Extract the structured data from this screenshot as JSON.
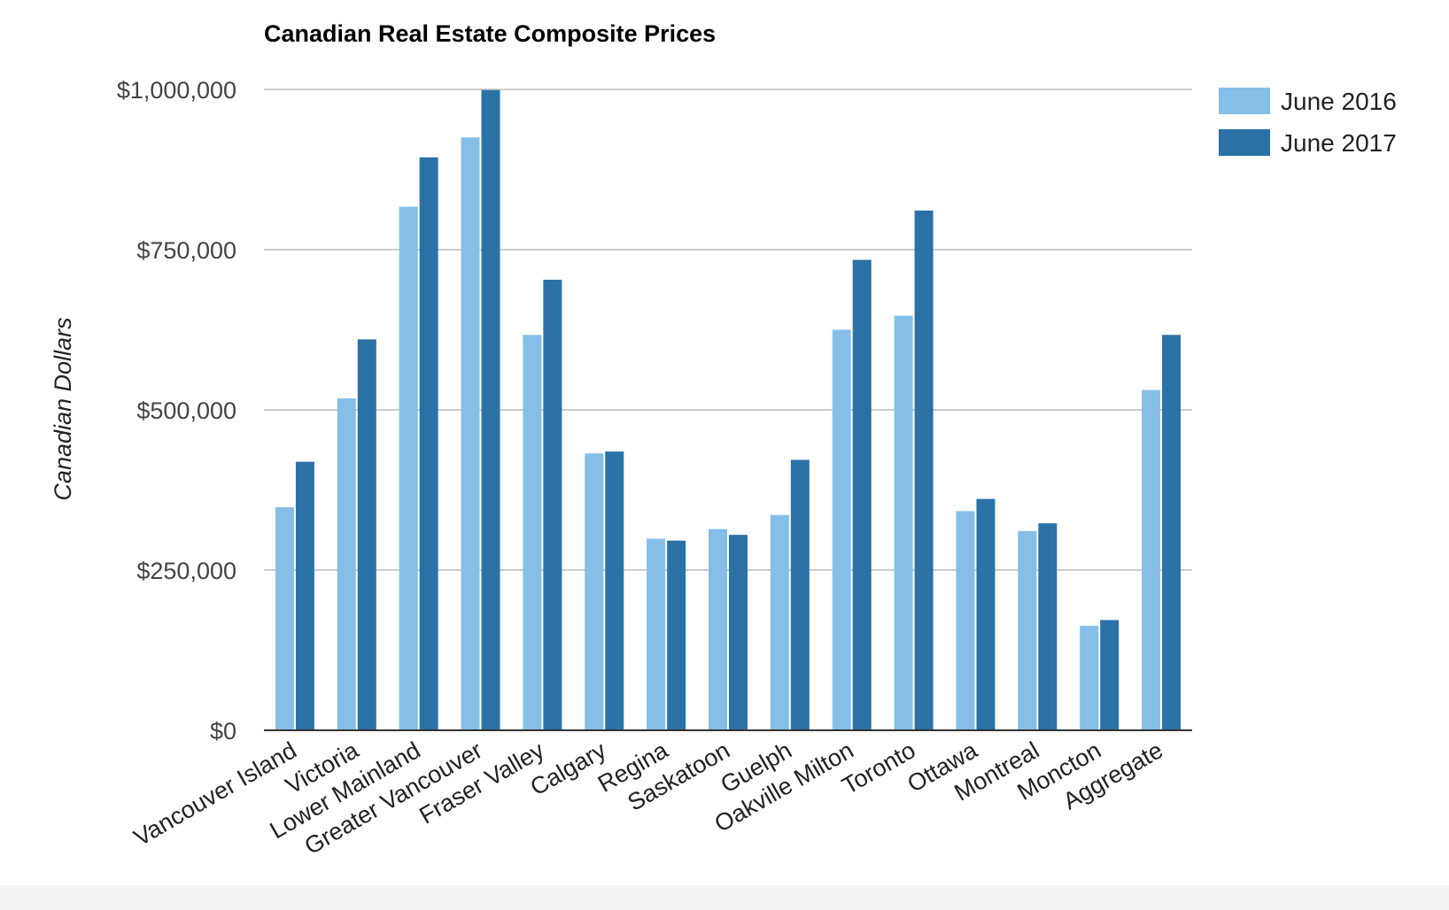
{
  "chart_data": {
    "type": "bar",
    "title": "Canadian Real Estate Composite Prices",
    "xlabel": "",
    "ylabel": "Canadian Dollars",
    "ylim": [
      0,
      1000000
    ],
    "yticks": [
      0,
      250000,
      500000,
      750000,
      1000000
    ],
    "ytick_labels": [
      "$0",
      "$250,000",
      "$500,000",
      "$750,000",
      "$1,000,000"
    ],
    "grid": true,
    "legend_position": "top-right",
    "categories": [
      "Vancouver Island",
      "Victoria",
      "Lower Mainland",
      "Greater Vancouver",
      "Fraser Valley",
      "Calgary",
      "Regina",
      "Saskatoon",
      "Guelph",
      "Oakville Milton",
      "Toronto",
      "Ottawa",
      "Montreal",
      "Moncton",
      "Aggregate"
    ],
    "series": [
      {
        "name": "June 2016",
        "color": "#85bfe8",
        "values": [
          348000,
          518000,
          817000,
          925000,
          617000,
          432000,
          299000,
          314000,
          336000,
          625000,
          647000,
          342000,
          311000,
          163000,
          531000
        ]
      },
      {
        "name": "June 2017",
        "color": "#2a72a6",
        "values": [
          419000,
          610000,
          894000,
          999000,
          703000,
          435000,
          296000,
          305000,
          422000,
          734000,
          811000,
          361000,
          323000,
          172000,
          617000
        ]
      }
    ]
  }
}
